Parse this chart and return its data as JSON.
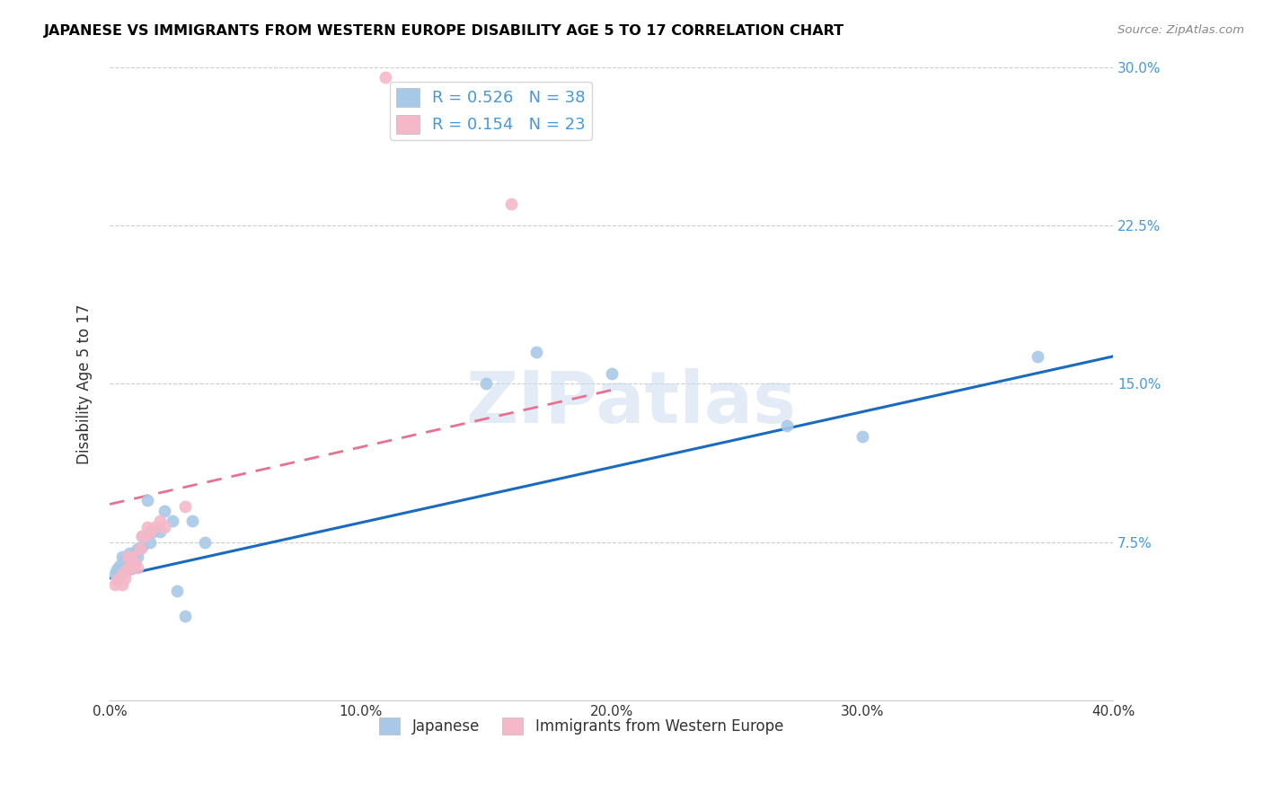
{
  "title": "JAPANESE VS IMMIGRANTS FROM WESTERN EUROPE DISABILITY AGE 5 TO 17 CORRELATION CHART",
  "source": "Source: ZipAtlas.com",
  "ylabel": "Disability Age 5 to 17",
  "xlim": [
    0.0,
    0.4
  ],
  "ylim": [
    0.0,
    0.3
  ],
  "xtick_vals": [
    0.0,
    0.1,
    0.2,
    0.3,
    0.4
  ],
  "xtick_labels": [
    "0.0%",
    "10.0%",
    "20.0%",
    "30.0%",
    "40.0%"
  ],
  "ytick_vals": [
    0.075,
    0.15,
    0.225,
    0.3
  ],
  "ytick_labels": [
    "7.5%",
    "15.0%",
    "22.5%",
    "30.0%"
  ],
  "watermark": "ZIPatlas",
  "blue_color": "#a8c8e8",
  "pink_color": "#f4b8c8",
  "blue_line_color": "#1a6bbf",
  "pink_line_color": "#e87090",
  "axis_label_color": "#4499dd",
  "text_color": "#333333",
  "grid_color": "#cccccc",
  "blue_R": 0.526,
  "blue_N": 38,
  "pink_R": 0.154,
  "pink_N": 23,
  "legend_label_blue": "Japanese",
  "legend_label_pink": "Immigrants from Western Europe",
  "blue_x": [
    0.002,
    0.003,
    0.003,
    0.004,
    0.004,
    0.005,
    0.005,
    0.006,
    0.006,
    0.007,
    0.007,
    0.008,
    0.009,
    0.009,
    0.01,
    0.01,
    0.011,
    0.011,
    0.012,
    0.013,
    0.013,
    0.014,
    0.015,
    0.016,
    0.017,
    0.02,
    0.022,
    0.025,
    0.027,
    0.03,
    0.033,
    0.038,
    0.15,
    0.17,
    0.2,
    0.27,
    0.3,
    0.37
  ],
  "blue_y": [
    0.06,
    0.058,
    0.062,
    0.06,
    0.064,
    0.063,
    0.068,
    0.062,
    0.067,
    0.063,
    0.067,
    0.07,
    0.063,
    0.068,
    0.065,
    0.07,
    0.068,
    0.072,
    0.072,
    0.073,
    0.078,
    0.078,
    0.095,
    0.075,
    0.08,
    0.08,
    0.09,
    0.085,
    0.052,
    0.04,
    0.085,
    0.075,
    0.15,
    0.165,
    0.155,
    0.13,
    0.125,
    0.163
  ],
  "pink_x": [
    0.002,
    0.003,
    0.004,
    0.005,
    0.005,
    0.006,
    0.007,
    0.007,
    0.008,
    0.009,
    0.01,
    0.011,
    0.012,
    0.013,
    0.014,
    0.015,
    0.016,
    0.018,
    0.02,
    0.022,
    0.03,
    0.11,
    0.16
  ],
  "pink_y": [
    0.055,
    0.057,
    0.058,
    0.055,
    0.06,
    0.058,
    0.063,
    0.068,
    0.062,
    0.068,
    0.065,
    0.063,
    0.072,
    0.078,
    0.078,
    0.082,
    0.08,
    0.082,
    0.085,
    0.082,
    0.092,
    0.295,
    0.235
  ],
  "blue_line_x0": 0.0,
  "blue_line_y0": 0.058,
  "blue_line_x1": 0.4,
  "blue_line_y1": 0.163,
  "pink_line_x0": 0.0,
  "pink_line_y0": 0.093,
  "pink_line_x1": 0.2,
  "pink_line_y1": 0.147
}
